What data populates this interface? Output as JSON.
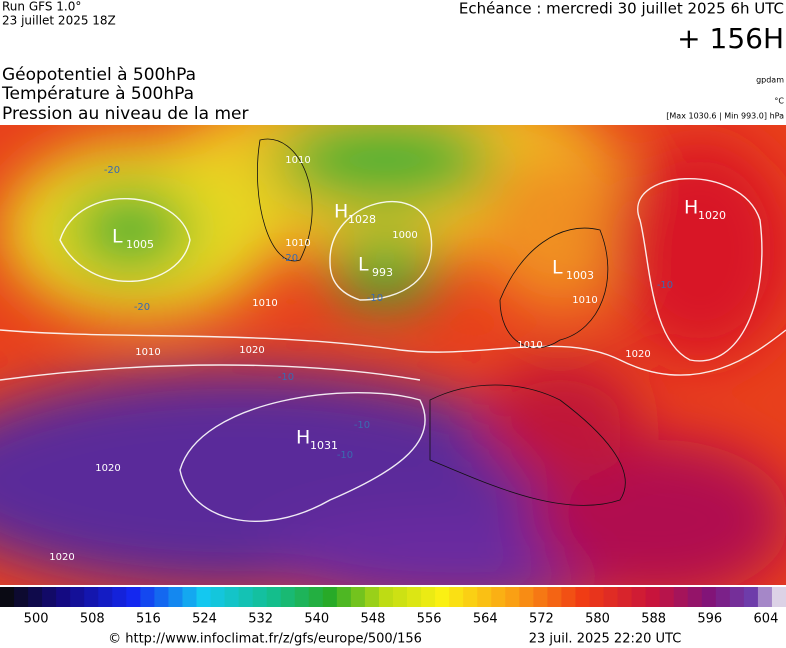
{
  "header": {
    "run": "Run GFS 1.0°",
    "run_date": "23 juillet 2025 18Z",
    "valid": "Echéance : mercredi 30 juillet 2025 6h UTC",
    "lead": "+ 156H"
  },
  "layers": [
    "Géopotentiel à 500hPa",
    "Température à 500hPa",
    "Pression au niveau de la mer"
  ],
  "units": {
    "geopotential": "gpdam",
    "temperature": "°C",
    "pressure": "[Max 1030.6 | Min 993.0] hPa"
  },
  "map": {
    "centers": [
      {
        "kind": "L",
        "value": "1005"
      },
      {
        "kind": "H",
        "value": "1028"
      },
      {
        "kind": "L",
        "value": "993"
      },
      {
        "kind": "L",
        "value": "1003"
      },
      {
        "kind": "H",
        "value": "1020"
      },
      {
        "kind": "H",
        "value": "1031"
      }
    ],
    "isobar_labels": [
      "1010",
      "1010",
      "1000",
      "1010",
      "1020",
      "1010",
      "1010",
      "1010",
      "1020",
      "1020",
      "1020"
    ],
    "temperature_labels": [
      "-20",
      "-20",
      "-20",
      "-10",
      "-10",
      "-10",
      "-10",
      "-10"
    ]
  },
  "scale": {
    "labels": [
      "500",
      "508",
      "516",
      "524",
      "532",
      "540",
      "548",
      "556",
      "564",
      "572",
      "580",
      "588",
      "596",
      "604"
    ]
  },
  "footer": {
    "source": "© http://www.infoclimat.fr/z/gfs/europe/500/156",
    "generated": "23 juil. 2025 22:20 UTC"
  }
}
